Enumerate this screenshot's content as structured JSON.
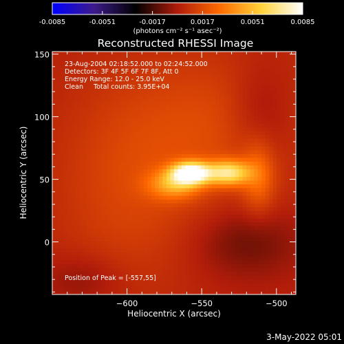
{
  "footer_date": "3-May-2022 05:01",
  "colorbar": {
    "ticks": [
      "-0.0085",
      "-0.0051",
      "-0.0017",
      "0.0017",
      "0.0051",
      "0.0085"
    ],
    "min": -0.0085,
    "max": 0.0085,
    "unit_label": "(photons cm⁻² s⁻¹ asec⁻²)",
    "colormap": [
      "#0000ff",
      "#3d1b8a",
      "#000000",
      "#b01c0a",
      "#ff6a00",
      "#ffd23a",
      "#ffffff"
    ]
  },
  "chart_data": {
    "type": "heatmap",
    "title": "Reconstructed RHESSI Image",
    "xlabel": "Heliocentric X (arcsec)",
    "ylabel": "Heliocentric Y (arcsec)",
    "xlim": [
      -650,
      -487
    ],
    "ylim": [
      -42,
      152
    ],
    "xticks": [
      -600,
      -550,
      -500
    ],
    "yticks": [
      0,
      50,
      100,
      150
    ],
    "annotations": [
      "23-Aug-2004 02:18:52.000 to 02:24:52.000",
      "Detectors: 3F 4F 5F 6F 7F 8F, Att 0",
      "Energy Range: 12.0 - 25.0 keV",
      "Clean     Total counts: 3.95E+04"
    ],
    "peak_label": "Position of Peak = [-557,55]",
    "peak": [
      -557,
      55
    ],
    "sources": [
      {
        "x": -557,
        "y": 55,
        "sx": 9,
        "sy": 6,
        "amp": 0.0085
      },
      {
        "x": -532,
        "y": 55,
        "sx": 10,
        "sy": 7,
        "amp": 0.0058
      },
      {
        "x": -568,
        "y": 46,
        "sx": 12,
        "sy": 8,
        "amp": 0.0035
      },
      {
        "x": -512,
        "y": 52,
        "sx": 8,
        "sy": 20,
        "amp": 0.0022
      },
      {
        "x": -540,
        "y": 90,
        "sx": 45,
        "sy": 45,
        "amp": 0.0013
      },
      {
        "x": -600,
        "y": 40,
        "sx": 35,
        "sy": 60,
        "amp": 0.0011
      },
      {
        "x": -510,
        "y": 100,
        "sx": 15,
        "sy": 30,
        "amp": -0.0012
      },
      {
        "x": -520,
        "y": 0,
        "sx": 25,
        "sy": 20,
        "amp": -0.0014
      },
      {
        "x": -630,
        "y": -30,
        "sx": 20,
        "sy": 15,
        "amp": -0.0009
      }
    ],
    "background": 0.0002
  }
}
